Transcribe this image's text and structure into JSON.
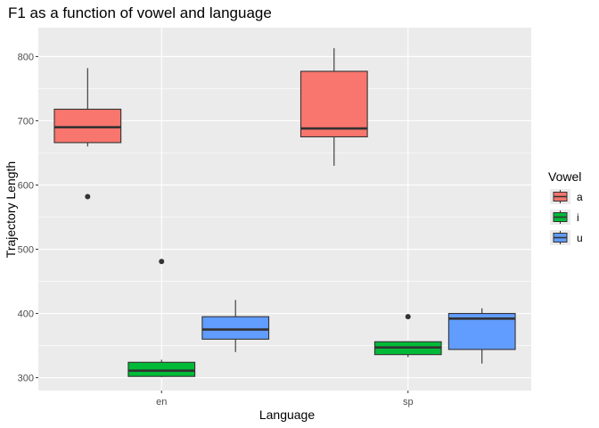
{
  "chart_data": {
    "type": "boxplot",
    "title": "F1 as a function of vowel and language",
    "xlabel": "Language",
    "ylabel": "Trajectory Length",
    "categories": [
      "en",
      "sp"
    ],
    "ylim": [
      280,
      845
    ],
    "yticks": [
      300,
      400,
      500,
      600,
      700,
      800
    ],
    "legend": {
      "title": "Vowel",
      "position": "right",
      "entries": [
        {
          "label": "a",
          "color": "#F8766D"
        },
        {
          "label": "i",
          "color": "#00BA38"
        },
        {
          "label": "u",
          "color": "#619CFF"
        }
      ]
    },
    "series": [
      {
        "name": "a",
        "color": "#F8766D",
        "boxes": [
          {
            "category": "en",
            "whisker_low": 660,
            "q1": 666,
            "median": 690,
            "q3": 718,
            "whisker_high": 782,
            "outliers": [
              582
            ]
          },
          {
            "category": "sp",
            "whisker_low": 630,
            "q1": 675,
            "median": 688,
            "q3": 777,
            "whisker_high": 813,
            "outliers": []
          }
        ]
      },
      {
        "name": "i",
        "color": "#00BA38",
        "boxes": [
          {
            "category": "en",
            "whisker_low": 301,
            "q1": 302,
            "median": 311,
            "q3": 324,
            "whisker_high": 328,
            "outliers": [
              481
            ]
          },
          {
            "category": "sp",
            "whisker_low": 332,
            "q1": 336,
            "median": 347,
            "q3": 356,
            "whisker_high": 357,
            "outliers": [
              395
            ]
          }
        ]
      },
      {
        "name": "u",
        "color": "#619CFF",
        "boxes": [
          {
            "category": "en",
            "whisker_low": 340,
            "q1": 360,
            "median": 375,
            "q3": 395,
            "whisker_high": 421,
            "outliers": []
          },
          {
            "category": "sp",
            "whisker_low": 322,
            "q1": 344,
            "median": 392,
            "q3": 400,
            "whisker_high": 408,
            "outliers": []
          }
        ]
      }
    ]
  }
}
